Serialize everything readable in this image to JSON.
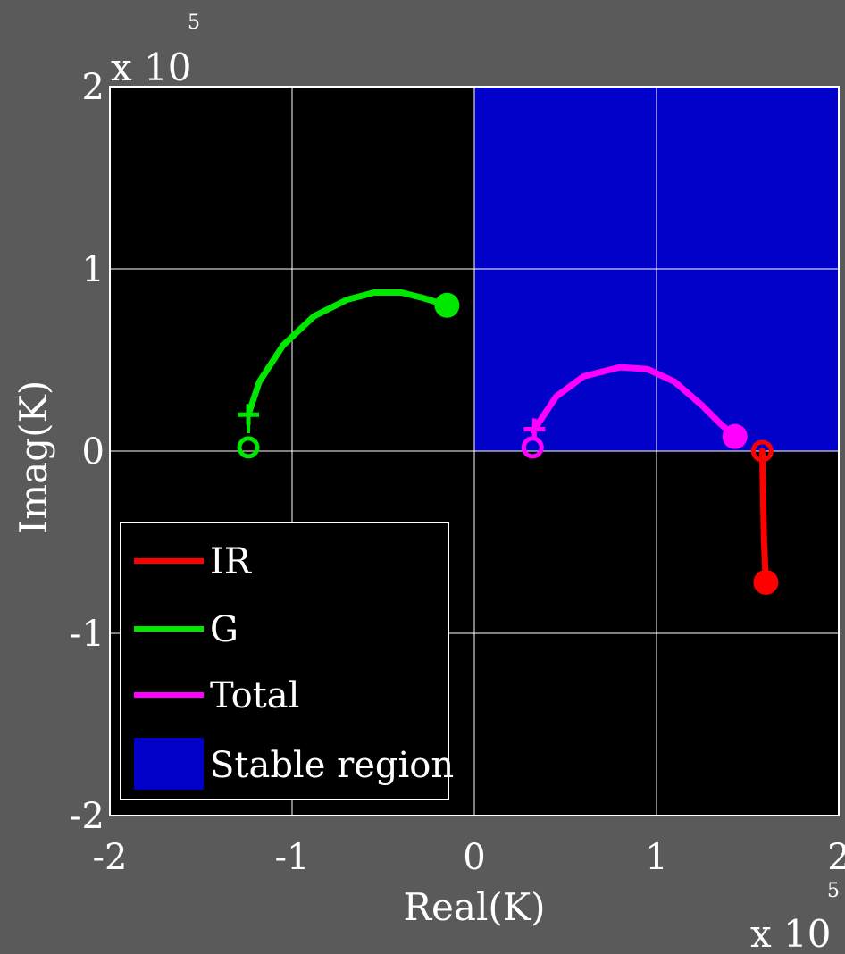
{
  "chart_data": {
    "type": "line",
    "xlabel": "Real(K)",
    "ylabel": "Imag(K)",
    "xlim": [
      -2,
      2
    ],
    "ylim": [
      -2,
      2
    ],
    "x_ticks": [
      "-2",
      "-1",
      "0",
      "1",
      "2"
    ],
    "y_ticks": [
      "2",
      "1",
      "0",
      "-1",
      "-2"
    ],
    "x_multiplier": {
      "base": "x 10",
      "exponent": "5"
    },
    "y_multiplier": {
      "base": "x 10",
      "exponent": "5"
    },
    "grid": true,
    "background_color": "#000000",
    "page_background": "#5a5a5a",
    "stable_region": {
      "label": "Stable region",
      "color": "#0000c8",
      "x_range": [
        0,
        2
      ],
      "y_range": [
        0,
        2
      ]
    },
    "series": [
      {
        "name": "IR",
        "color": "#ff0000",
        "x": [
          1.58,
          1.585,
          1.59,
          1.6
        ],
        "y": [
          0.0,
          -0.25,
          -0.5,
          -0.72
        ],
        "start_marker": "circle-open",
        "end_marker": "circle-filled"
      },
      {
        "name": "G",
        "color": "#00e800",
        "x": [
          -1.24,
          -1.18,
          -1.05,
          -0.88,
          -0.7,
          -0.55,
          -0.4,
          -0.28,
          -0.15
        ],
        "y": [
          0.2,
          0.38,
          0.58,
          0.74,
          0.83,
          0.87,
          0.87,
          0.84,
          0.8
        ],
        "start_marker": "plus",
        "end_marker": "circle-filled",
        "origin_marker": {
          "x": -1.24,
          "y": 0.02
        }
      },
      {
        "name": "Total",
        "color": "#ff00ff",
        "x": [
          0.33,
          0.45,
          0.6,
          0.8,
          0.95,
          1.1,
          1.25,
          1.35,
          1.43
        ],
        "y": [
          0.12,
          0.3,
          0.41,
          0.46,
          0.45,
          0.38,
          0.25,
          0.15,
          0.08
        ],
        "start_marker": "plus",
        "end_marker": "circle-filled",
        "origin_marker": {
          "x": 0.32,
          "y": 0.02
        }
      }
    ],
    "legend": {
      "position": "bottom-left",
      "entries": [
        "IR",
        "G",
        "Total",
        "Stable region"
      ]
    }
  }
}
